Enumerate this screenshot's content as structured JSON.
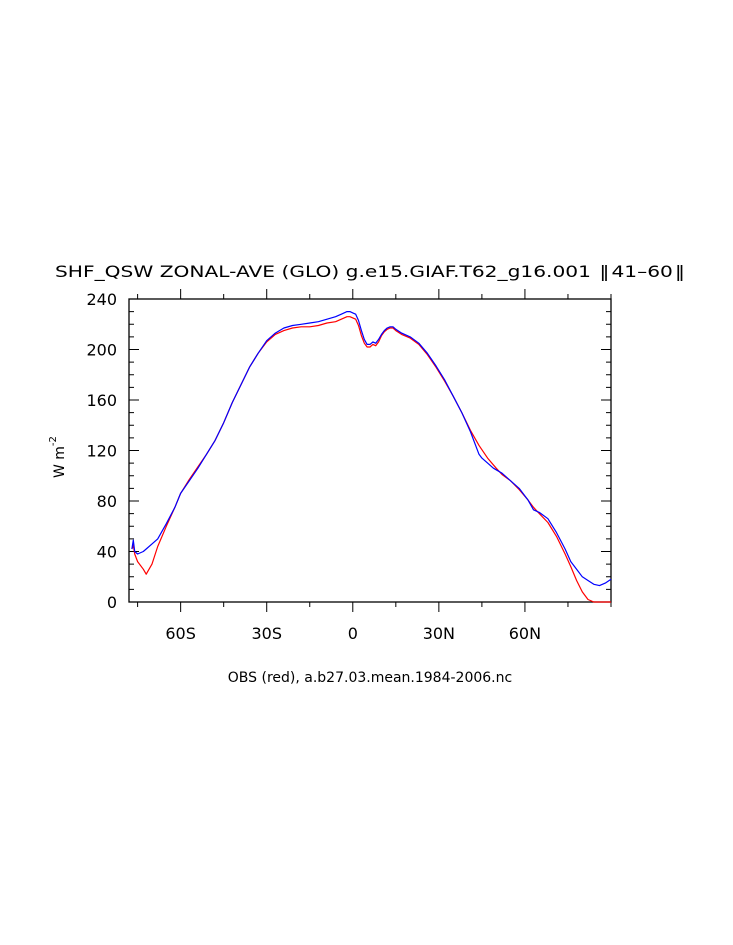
{
  "chart_data": {
    "type": "line",
    "title": "SHF_QSW ZONAL-AVE (GLO) g.e15.GIAF.T62_g16.001  ‖ 41–60 ‖",
    "xlabel": "OBS (red), a.b27.03.mean.1984-2006.nc",
    "ylabel": "W m",
    "ylabel_exponent": "-2",
    "xlim": [
      -78,
      90
    ],
    "ylim": [
      0,
      240
    ],
    "y_ticks": [
      0,
      40,
      80,
      120,
      160,
      200,
      240
    ],
    "y_tick_labels": [
      "0",
      "40",
      "80",
      "120",
      "160",
      "200",
      "240"
    ],
    "x_ticks": [
      -60,
      -30,
      0,
      30,
      60
    ],
    "x_tick_labels": [
      "60S",
      "30S",
      "0",
      "30N",
      "60N"
    ],
    "grid": false,
    "series": [
      {
        "color": "#0000ff",
        "x": [
          -77,
          -76.5,
          -76,
          -75,
          -73,
          -72,
          -70,
          -68,
          -65,
          -62,
          -60,
          -57,
          -54,
          -51,
          -48,
          -45,
          -42,
          -39,
          -36,
          -33,
          -30,
          -27,
          -24,
          -21,
          -18,
          -15,
          -12,
          -9,
          -6,
          -4,
          -2,
          -1,
          0,
          1,
          2,
          3,
          4,
          5,
          6,
          7,
          8,
          9,
          10,
          11,
          12,
          13,
          14,
          15,
          17,
          20,
          23,
          26,
          29,
          32,
          35,
          38,
          41,
          44,
          45,
          47,
          49,
          52,
          55,
          58,
          61,
          63,
          65,
          68,
          71,
          74,
          76,
          78,
          80,
          82,
          84,
          86,
          88,
          90
        ],
        "y": [
          42,
          49,
          40,
          38,
          40,
          42,
          46,
          50,
          62,
          75,
          86,
          96,
          106,
          117,
          128,
          142,
          158,
          172,
          186,
          197,
          207,
          213,
          217,
          219,
          220,
          221,
          222,
          224,
          226,
          228,
          230,
          230,
          229,
          228,
          223,
          215,
          208,
          204,
          204,
          206,
          205,
          208,
          212,
          215,
          217,
          218,
          218,
          216,
          213,
          210,
          205,
          197,
          187,
          176,
          163,
          150,
          135,
          117,
          114,
          110,
          106,
          102,
          96,
          90,
          81,
          73,
          71,
          66,
          55,
          42,
          32,
          26,
          20,
          17,
          14,
          13,
          15,
          18
        ]
      },
      {
        "color": "#ff0000",
        "x": [
          -77,
          -76.5,
          -76,
          -75,
          -73,
          -72,
          -70,
          -68,
          -65,
          -62,
          -60,
          -57,
          -54,
          -51,
          -48,
          -45,
          -42,
          -39,
          -36,
          -33,
          -30,
          -27,
          -24,
          -21,
          -18,
          -15,
          -12,
          -9,
          -6,
          -4,
          -2,
          -1,
          0,
          1,
          2,
          3,
          4,
          5,
          6,
          7,
          8,
          9,
          10,
          11,
          12,
          13,
          14,
          15,
          17,
          20,
          23,
          26,
          29,
          32,
          35,
          38,
          41,
          44,
          47,
          50,
          52,
          55,
          58,
          61,
          63,
          65,
          68,
          71,
          74,
          76,
          78,
          80,
          82,
          84,
          86,
          88,
          90
        ],
        "y": [
          42,
          45,
          38,
          32,
          26,
          22,
          30,
          44,
          60,
          75,
          86,
          97,
          107,
          117,
          128,
          142,
          158,
          172,
          186,
          197,
          206,
          212,
          215,
          217,
          218,
          218,
          219,
          221,
          222,
          224,
          226,
          226,
          225,
          224,
          219,
          211,
          205,
          202,
          202,
          204,
          203,
          206,
          211,
          214,
          216,
          217,
          217,
          215,
          212,
          209,
          204,
          196,
          186,
          175,
          163,
          150,
          136,
          124,
          114,
          106,
          101,
          96,
          89,
          81,
          75,
          70,
          63,
          52,
          38,
          28,
          17,
          8,
          2,
          0,
          0,
          0,
          0
        ]
      }
    ]
  }
}
